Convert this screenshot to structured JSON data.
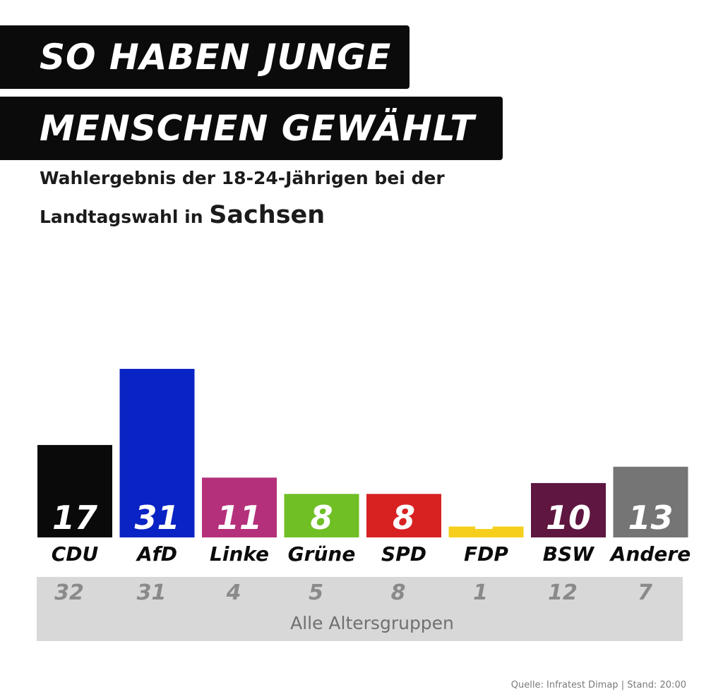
{
  "header": {
    "title_line1": "SO HABEN JUNGE",
    "title_line2": "MENSCHEN GEWÄHLT",
    "subtitle_line1": "Wahlergebnis der 18-24-Jährigen bei der",
    "subtitle_line2_prefix": "Landtagswahl in",
    "subtitle_line2_region": "Sachsen"
  },
  "chart_data": {
    "type": "bar",
    "title": "SO HABEN JUNGE MENSCHEN GEWÄHLT",
    "categories": [
      "CDU",
      "AfD",
      "Linke",
      "Grüne",
      "SPD",
      "FDP",
      "BSW",
      "Andere"
    ],
    "series": [
      {
        "name": "",
        "values": [
          17,
          31,
          11,
          8,
          8,
          2,
          10,
          13
        ],
        "colors": [
          "#0a0a0a",
          "#0a23c4",
          "#b5307a",
          "#6fbf25",
          "#d82222",
          "#f6cf1d",
          "#5f1640",
          "#757575"
        ]
      },
      {
        "name": "Alle Altersgruppen",
        "values": [
          32,
          31,
          4,
          5,
          8,
          1,
          12,
          7
        ]
      }
    ],
    "ylim": [
      0,
      31
    ],
    "grid": false,
    "legend": "none"
  },
  "footer": {
    "source": "Quelle: Infratest Dimap | Stand: 20:00"
  }
}
